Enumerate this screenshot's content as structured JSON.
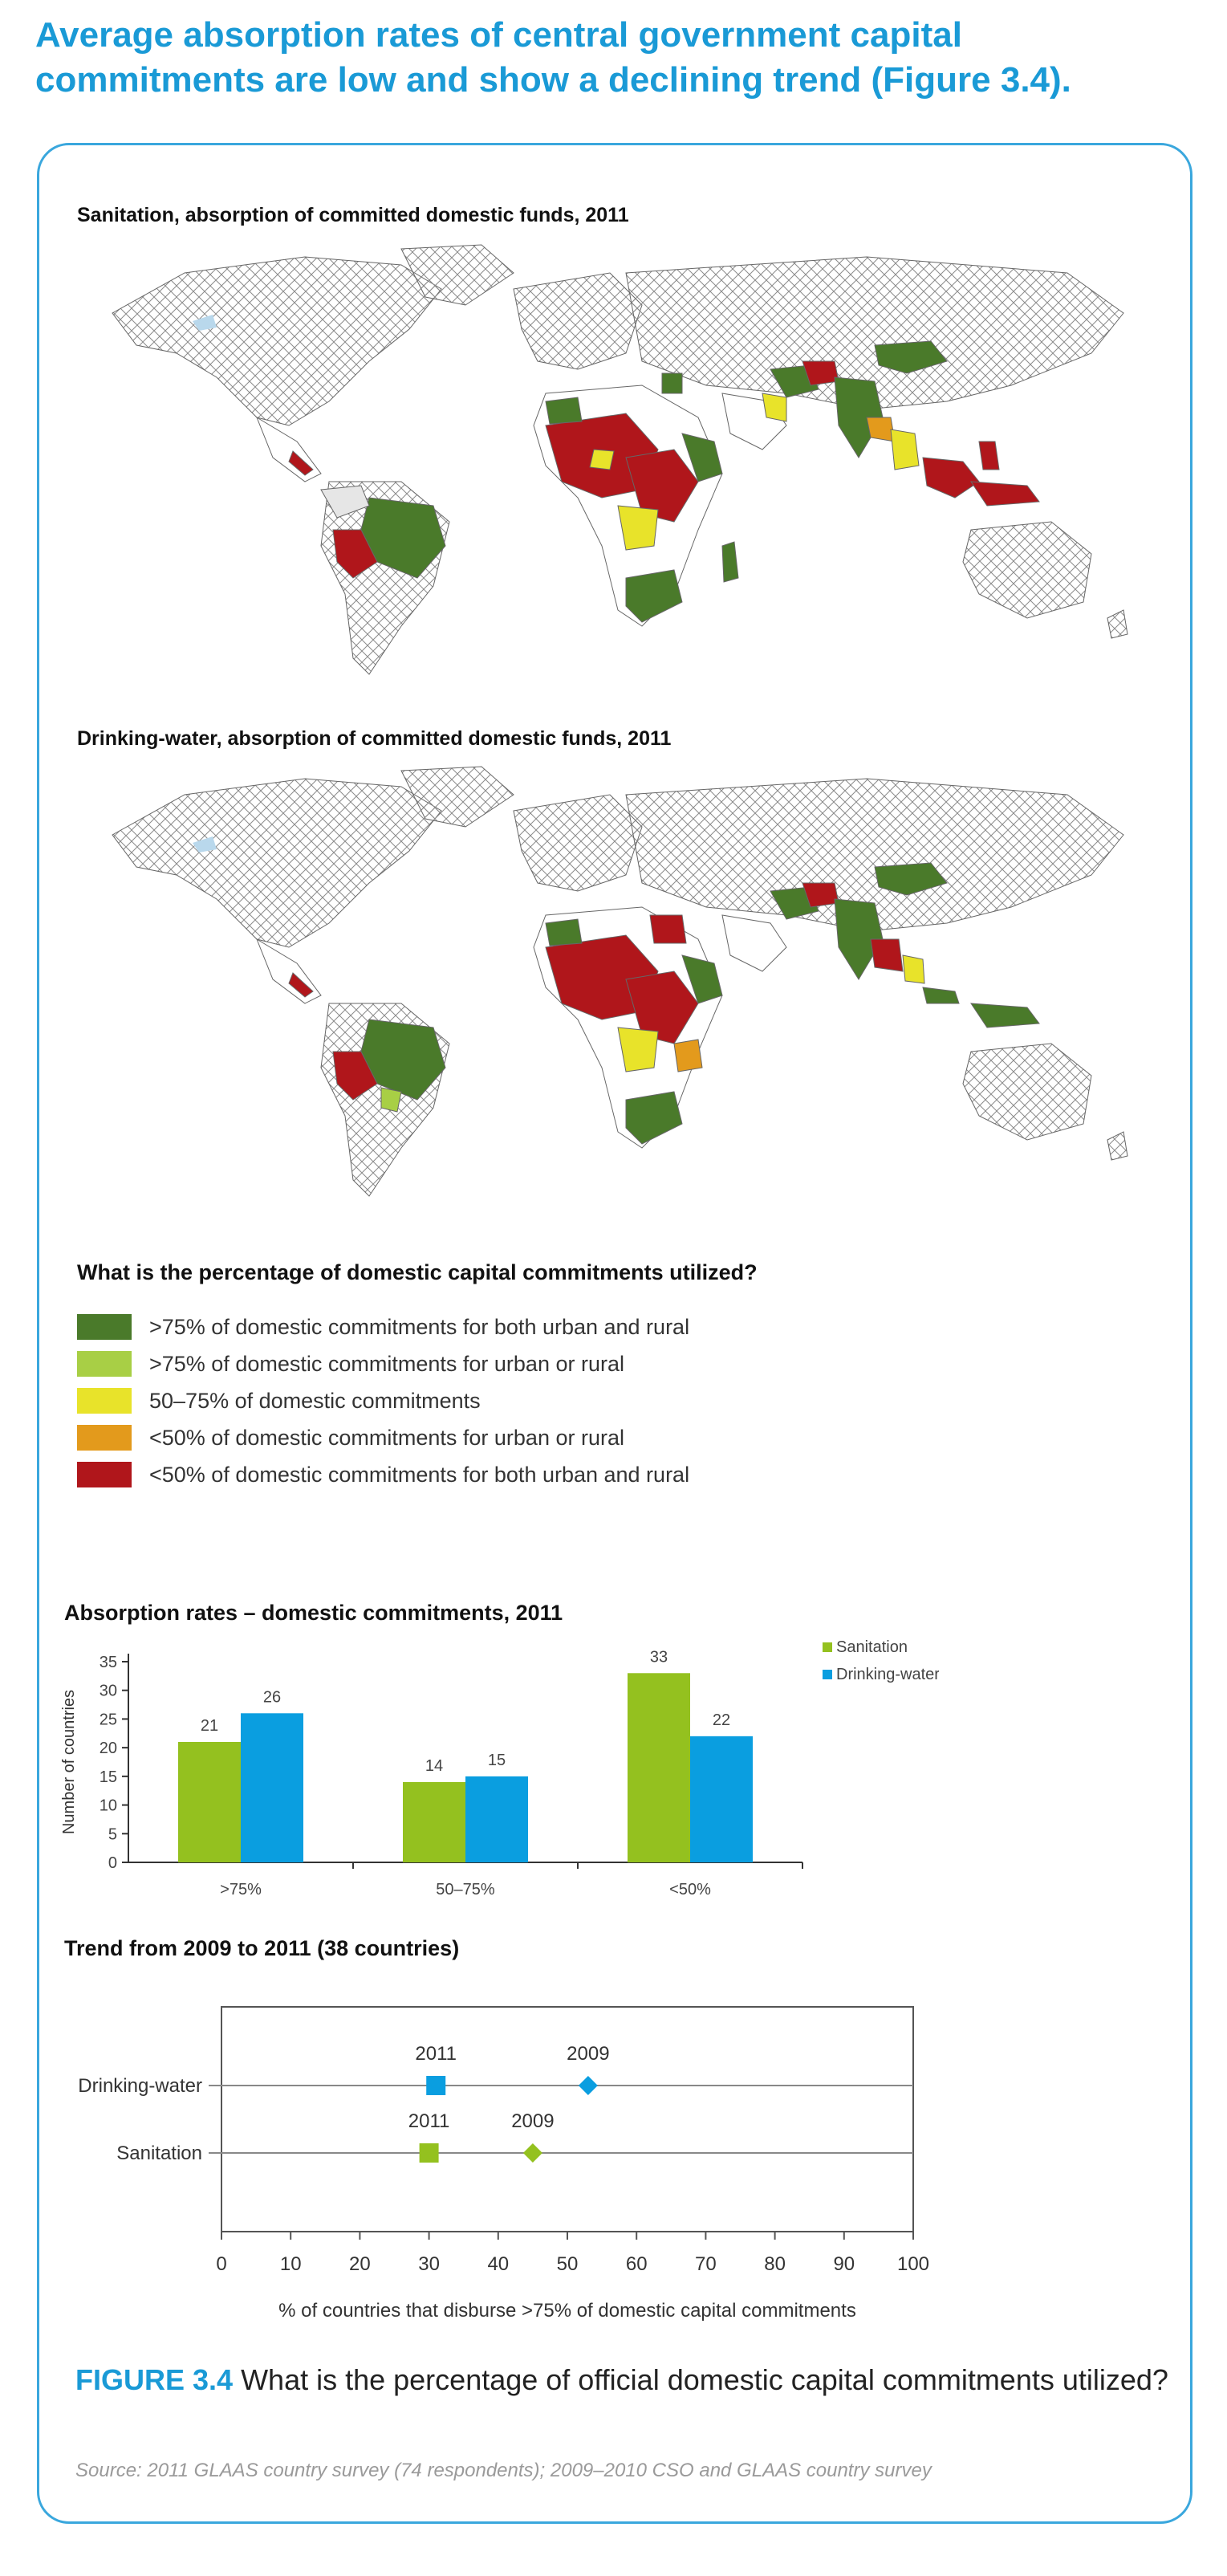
{
  "headline": "Average absorption rates of central government capital commitments are low and show a declining trend (Figure 3.4).",
  "maps": {
    "sanitation_title": "Sanitation, absorption of committed domestic funds, 2011",
    "drinking_title": "Drinking-water, absorption of committed domestic funds, 2011"
  },
  "legend": {
    "title": "What is the percentage of domestic capital commitments utilized?",
    "items": [
      {
        "label": ">75% of domestic commitments for both urban and rural",
        "color": "#4a7a2a"
      },
      {
        "label": ">75% of domestic commitments for urban or rural",
        "color": "#a8cf45"
      },
      {
        "label": "50–75% of domestic commitments",
        "color": "#e8e32a"
      },
      {
        "label": "<50% of domestic commitments for urban or rural",
        "color": "#e39a1c"
      },
      {
        "label": "<50% of domestic commitments for both urban and rural",
        "color": "#b0161b"
      }
    ]
  },
  "chart_data": [
    {
      "type": "bar",
      "title": "Absorption rates – domestic commitments, 2011",
      "ylabel": "Number of countries",
      "categories": [
        ">75%",
        "50–75%",
        "<50%"
      ],
      "series": [
        {
          "name": "Sanitation",
          "values": [
            21,
            14,
            33
          ],
          "color": "#94c11f"
        },
        {
          "name": "Drinking-water",
          "values": [
            26,
            15,
            22
          ],
          "color": "#0a9ee0"
        }
      ],
      "ylim": [
        0,
        35
      ],
      "yticks": [
        0,
        5,
        10,
        15,
        20,
        25,
        30,
        35
      ],
      "legend_position": "top-right"
    },
    {
      "type": "scatter",
      "title": "Trend from 2009 to 2011 (38 countries)",
      "xlabel": "% of countries that disburse >75% of domestic capital commitments",
      "xlim": [
        0,
        100
      ],
      "xticks": [
        0,
        10,
        20,
        30,
        40,
        50,
        60,
        70,
        80,
        90,
        100
      ],
      "categories": [
        "Drinking-water",
        "Sanitation"
      ],
      "points": [
        {
          "category": "Drinking-water",
          "year": "2011",
          "x": 31,
          "marker": "square",
          "color": "#0a9ee0"
        },
        {
          "category": "Drinking-water",
          "year": "2009",
          "x": 53,
          "marker": "diamond",
          "color": "#0a9ee0"
        },
        {
          "category": "Sanitation",
          "year": "2011",
          "x": 30,
          "marker": "square",
          "color": "#94c11f"
        },
        {
          "category": "Sanitation",
          "year": "2009",
          "x": 45,
          "marker": "diamond",
          "color": "#94c11f"
        }
      ]
    }
  ],
  "caption": {
    "figure_label": "FIGURE 3.4",
    "text": " What is the percentage of official domestic capital commitments utilized?"
  },
  "source": "Source: 2011 GLAAS country survey (74 respondents); 2009–2010 CSO and GLAAS country survey"
}
